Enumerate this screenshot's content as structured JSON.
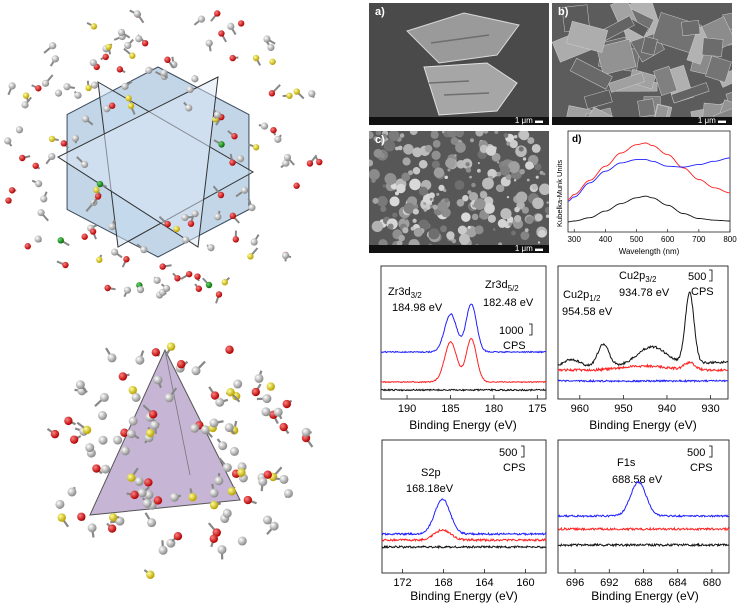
{
  "sem_panels": [
    {
      "label": "a)",
      "scale": "1 μm"
    },
    {
      "label": "b)",
      "scale": "1 μm"
    },
    {
      "label": "c)",
      "scale": "1 μm"
    }
  ],
  "uvvis": {
    "label": "d)",
    "ylabel": "Kubelka-Munk Units",
    "xlabel": "Wavelength (nm)",
    "xticks": [
      "300",
      "400",
      "500",
      "600",
      "700",
      "800"
    ]
  },
  "xps_zr": {
    "peak1": "Zr3d3/2",
    "peak1_value": "184.98 eV",
    "peak2": "Zr3d5/2",
    "peak2_value": "182.48 eV",
    "scale_value": "1000",
    "scale_unit": "CPS",
    "xlabel": "Binding Energy (eV)",
    "xticks": [
      "190",
      "185",
      "180",
      "175"
    ]
  },
  "xps_cu": {
    "peak1": "Cu2p1/2",
    "peak1_value": "954.58 eV",
    "peak2": "Cu2p3/2",
    "peak2_value": "934.78 eV",
    "scale_value": "500",
    "scale_unit": "CPS",
    "xlabel": "Binding Energy (eV)",
    "xticks": [
      "960",
      "950",
      "940",
      "930"
    ]
  },
  "xps_s": {
    "peak": "S2p",
    "peak_value": "168.18eV",
    "scale_value": "500",
    "scale_unit": "CPS",
    "xlabel": "Binding Energy (eV)",
    "xticks": [
      "172",
      "168",
      "164",
      "160"
    ]
  },
  "xps_f": {
    "peak": "F1s",
    "peak_value": "688.58 eV",
    "scale_value": "500",
    "scale_unit": "CPS",
    "xlabel": "Binding Energy (eV)",
    "xticks": [
      "696",
      "692",
      "688",
      "684",
      "680"
    ]
  },
  "colors": {
    "blue": "#1f1fff",
    "red": "#ff2020",
    "black": "#111111",
    "sem_bg": "#5a5a5a"
  },
  "chart_data": [
    {
      "type": "line",
      "panel": "d",
      "xlabel": "Wavelength (nm)",
      "ylabel": "Kubelka-Munk Units",
      "xlim": [
        280,
        800
      ],
      "x": [
        280,
        300,
        350,
        400,
        450,
        500,
        530,
        550,
        600,
        650,
        700,
        750,
        800
      ],
      "series": [
        {
          "color": "red",
          "values": [
            0.32,
            0.38,
            0.55,
            0.72,
            0.88,
            0.98,
            1.0,
            0.97,
            0.86,
            0.7,
            0.56,
            0.46,
            0.4
          ]
        },
        {
          "color": "blue",
          "values": [
            0.3,
            0.35,
            0.52,
            0.66,
            0.76,
            0.8,
            0.8,
            0.78,
            0.72,
            0.71,
            0.74,
            0.78,
            0.82
          ]
        },
        {
          "color": "black",
          "values": [
            0.05,
            0.06,
            0.1,
            0.18,
            0.27,
            0.34,
            0.36,
            0.34,
            0.25,
            0.15,
            0.09,
            0.07,
            0.06
          ]
        }
      ]
    }
  ]
}
